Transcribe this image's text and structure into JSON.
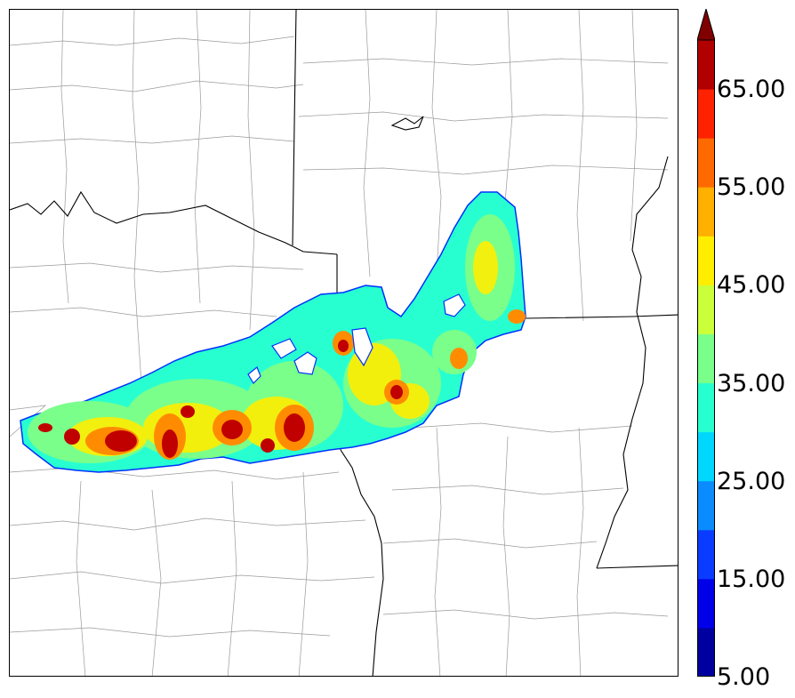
{
  "colorbar": {
    "tick_labels": [
      "5.00",
      "15.00",
      "25.00",
      "35.00",
      "45.00",
      "55.00",
      "65.00"
    ],
    "levels": [
      5,
      10,
      15,
      20,
      25,
      30,
      35,
      40,
      45,
      50,
      55,
      60,
      65,
      70
    ],
    "colors": [
      "#0000a0",
      "#0000e8",
      "#0a3cff",
      "#0a8cff",
      "#00d7ff",
      "#28ffd0",
      "#7aff8a",
      "#caff3a",
      "#ffee00",
      "#ffb000",
      "#ff6a00",
      "#ff2200",
      "#b00000"
    ],
    "extend_color": "#800000",
    "extend": "max"
  },
  "map": {
    "background": "#ffffff",
    "county_line_color": "#9a9a9a",
    "state_line_color": "#000000",
    "field_outline_color": "#0030ff",
    "field_base_color": "#28ffd0"
  }
}
